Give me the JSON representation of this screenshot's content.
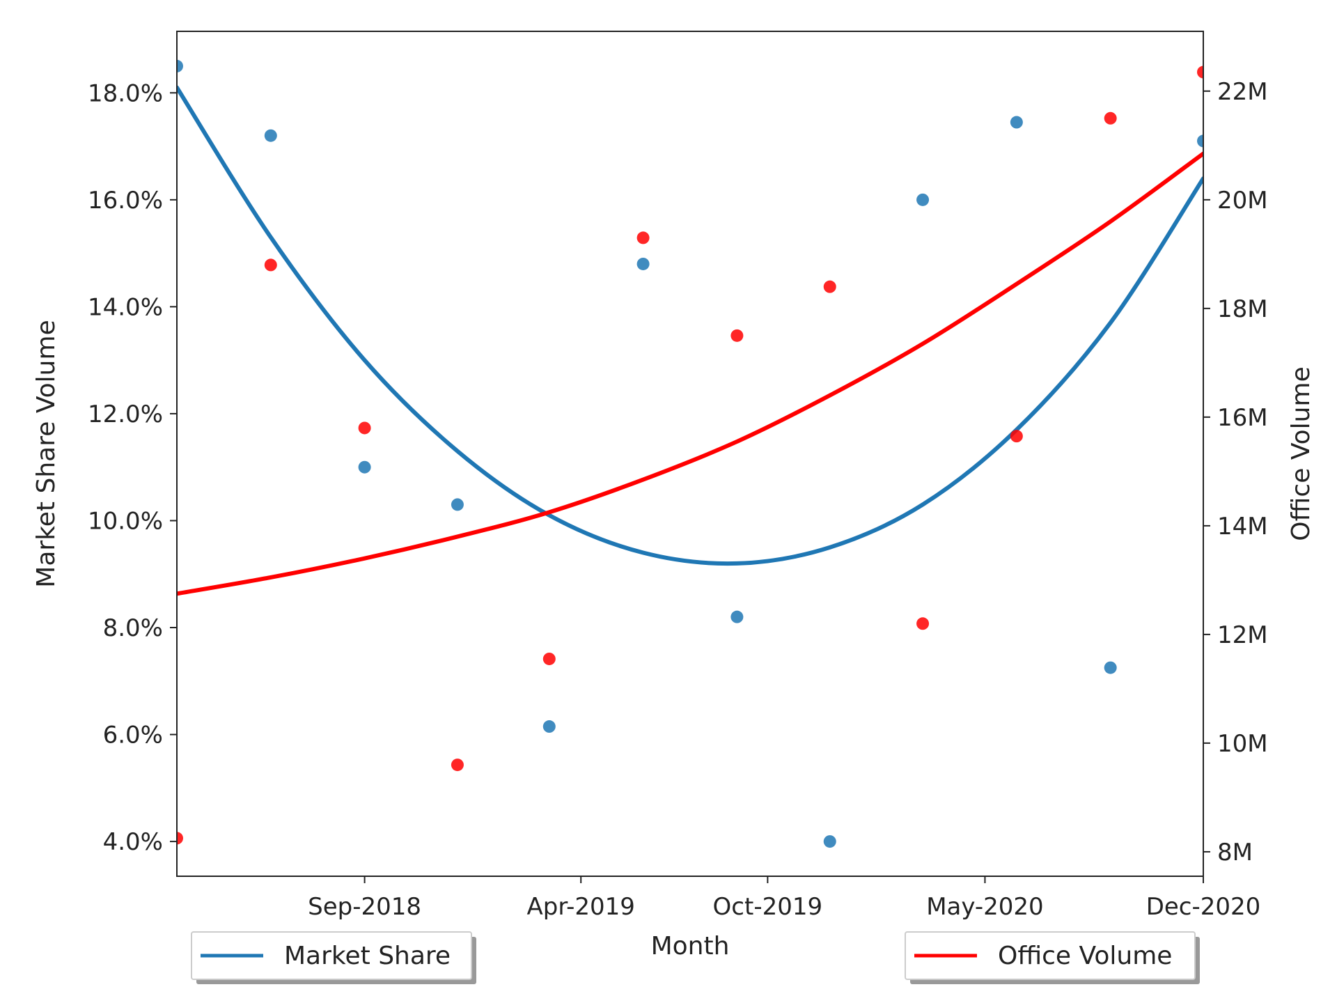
{
  "chart_data": {
    "type": "scatter",
    "xlabel": "Month",
    "ylabel_left": "Market Share Volume",
    "ylabel_right": "Office Volume",
    "x_tick_labels": [
      "Sep-2018",
      "Apr-2019",
      "Oct-2019",
      "May-2020",
      "Dec-2020"
    ],
    "x_tick_dates": [
      "2018-09-01",
      "2019-04-01",
      "2019-10-01",
      "2020-05-01",
      "2020-12-01"
    ],
    "x_range": [
      "2018-03-01",
      "2020-12-01"
    ],
    "y_left_ticks": [
      "4.0%",
      "6.0%",
      "8.0%",
      "10.0%",
      "12.0%",
      "14.0%",
      "16.0%",
      "18.0%"
    ],
    "y_left_values": [
      4,
      6,
      8,
      10,
      12,
      14,
      16,
      18
    ],
    "y_left_range": [
      3.35,
      19.15
    ],
    "y_right_ticks": [
      "8M",
      "10M",
      "12M",
      "14M",
      "16M",
      "18M",
      "20M",
      "22M"
    ],
    "y_right_values": [
      8000000,
      10000000,
      12000000,
      14000000,
      16000000,
      18000000,
      20000000,
      22000000
    ],
    "y_right_range": [
      7550000,
      23100000
    ],
    "grid": false,
    "legend": [
      {
        "label": "Market Share",
        "placement": "lower-left",
        "color": "#1f77b4"
      },
      {
        "label": "Office Volume",
        "placement": "lower-right",
        "color": "#ff0000"
      }
    ],
    "series": [
      {
        "name": "Market Share",
        "axis": "left",
        "color": "#1f77b4",
        "x": [
          "2018-03-01",
          "2018-06-01",
          "2018-09-01",
          "2018-12-01",
          "2019-03-01",
          "2019-06-01",
          "2019-09-01",
          "2019-12-01",
          "2020-03-01",
          "2020-06-01",
          "2020-09-01",
          "2020-12-01"
        ],
        "y": [
          18.5,
          17.2,
          11.0,
          10.3,
          6.15,
          14.8,
          8.2,
          4.0,
          16.0,
          17.45,
          7.25,
          17.1
        ],
        "trend": [
          18.1,
          15.3,
          13.0,
          11.3,
          10.1,
          9.4,
          9.2,
          9.5,
          10.3,
          11.7,
          13.7,
          16.4
        ]
      },
      {
        "name": "Office Volume",
        "axis": "right",
        "color": "#ff0000",
        "x": [
          "2018-03-01",
          "2018-06-01",
          "2018-09-01",
          "2018-12-01",
          "2019-03-01",
          "2019-06-01",
          "2019-09-01",
          "2019-12-01",
          "2020-03-01",
          "2020-06-01",
          "2020-09-01",
          "2020-12-01"
        ],
        "y": [
          8250000,
          18800000,
          15800000,
          9600000,
          11550000,
          19300000,
          17500000,
          18400000,
          12200000,
          15650000,
          21500000,
          22350000
        ],
        "trend": [
          12750000,
          13050000,
          13400000,
          13800000,
          14250000,
          14850000,
          15550000,
          16400000,
          17350000,
          18450000,
          19600000,
          20850000
        ]
      }
    ]
  }
}
